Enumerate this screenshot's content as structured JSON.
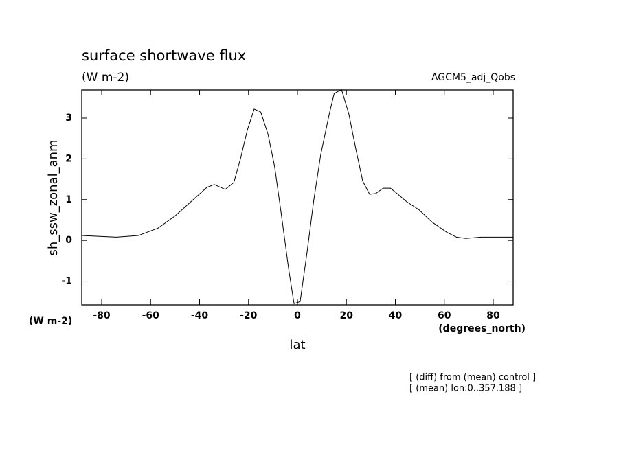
{
  "chart_data": {
    "type": "line",
    "title": "surface shortwave flux",
    "subtitle": "(W m-2)",
    "run_label": "AGCM5_adj_Qobs",
    "ylabel": "sh_ssw_zonal_anm",
    "yunits": "(W m-2)",
    "xlabel": "lat",
    "xunits": "(degrees_north)",
    "notes": [
      "[ (diff) from (mean) control ]",
      "[ (mean) lon:0..357.188 ]"
    ],
    "color": "#000000",
    "x": [
      -88.1,
      -74,
      -65,
      -57,
      -50,
      -37,
      -34,
      -29.5,
      -26,
      -23.3,
      -20.5,
      -17.7,
      -15,
      -12,
      -9.3,
      -6.5,
      -3.6,
      -1.4,
      1.1,
      3.9,
      6.7,
      9.5,
      13,
      15,
      18,
      21,
      24,
      26.7,
      29.5,
      32,
      35,
      38,
      40.7,
      44.6,
      49.7,
      55,
      61,
      65,
      68.8,
      75,
      88.1
    ],
    "values": [
      0.12,
      0.08,
      0.12,
      0.3,
      0.6,
      1.3,
      1.37,
      1.25,
      1.42,
      2.0,
      2.7,
      3.22,
      3.15,
      2.6,
      1.8,
      0.6,
      -0.7,
      -1.55,
      -1.5,
      -0.3,
      1.0,
      2.1,
      3.1,
      3.6,
      3.7,
      3.1,
      2.2,
      1.45,
      1.13,
      1.15,
      1.28,
      1.28,
      1.15,
      0.95,
      0.75,
      0.45,
      0.2,
      0.08,
      0.05,
      0.08,
      0.08
    ],
    "xlim": [
      -88.14,
      88.14
    ],
    "xticks": [
      -80,
      -60,
      -40,
      -20,
      0,
      20,
      40,
      60,
      80
    ],
    "ylim": [
      -1.58,
      3.69
    ],
    "yticks": [
      -1,
      0,
      1,
      2,
      3
    ]
  }
}
